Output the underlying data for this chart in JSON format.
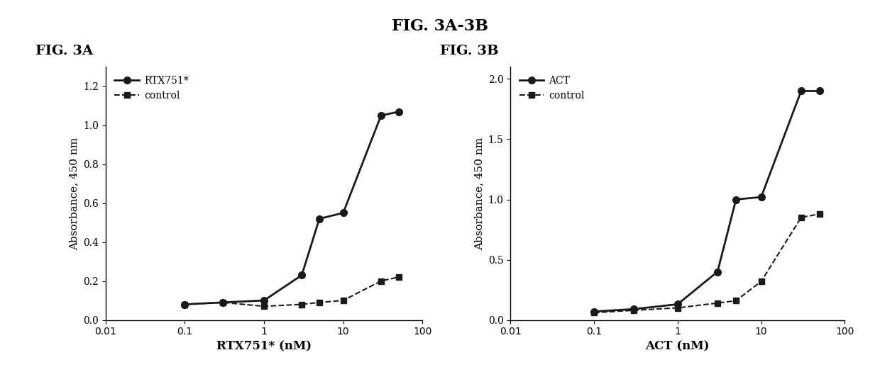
{
  "fig3a": {
    "title": "FIG. 3A",
    "xlabel": "RTX751* (nM)",
    "ylabel": "Absorbance, 450 nm",
    "xlim": [
      0.01,
      100
    ],
    "ylim": [
      0.0,
      1.3
    ],
    "yticks": [
      0.0,
      0.2,
      0.4,
      0.6,
      0.8,
      1.0,
      1.2
    ],
    "series1": {
      "label": "RTX751*",
      "x": [
        0.1,
        0.3,
        1.0,
        3.0,
        5.0,
        10.0,
        30.0,
        50.0
      ],
      "y": [
        0.08,
        0.09,
        0.1,
        0.23,
        0.52,
        0.55,
        1.05,
        1.07
      ]
    },
    "series2": {
      "label": "control",
      "x": [
        0.1,
        0.3,
        1.0,
        3.0,
        5.0,
        10.0,
        30.0,
        50.0
      ],
      "y": [
        0.08,
        0.09,
        0.07,
        0.08,
        0.09,
        0.1,
        0.2,
        0.22
      ]
    }
  },
  "fig3b": {
    "title": "FIG. 3B",
    "xlabel": "ACT (nM)",
    "ylabel": "Absorbance, 450 nm",
    "xlim": [
      0.01,
      100
    ],
    "ylim": [
      0.0,
      2.1
    ],
    "yticks": [
      0.0,
      0.5,
      1.0,
      1.5,
      2.0
    ],
    "series1": {
      "label": "ACT",
      "x": [
        0.1,
        0.3,
        1.0,
        3.0,
        5.0,
        10.0,
        30.0,
        50.0
      ],
      "y": [
        0.07,
        0.09,
        0.13,
        0.4,
        1.0,
        1.02,
        1.9,
        1.9
      ]
    },
    "series2": {
      "label": "control",
      "x": [
        0.1,
        0.3,
        1.0,
        3.0,
        5.0,
        10.0,
        30.0,
        50.0
      ],
      "y": [
        0.06,
        0.08,
        0.1,
        0.14,
        0.16,
        0.32,
        0.85,
        0.88
      ]
    }
  },
  "main_title": "FIG. 3A-3B",
  "background_color": "#ffffff",
  "line_color": "#1a1a1a",
  "font_family": "serif"
}
